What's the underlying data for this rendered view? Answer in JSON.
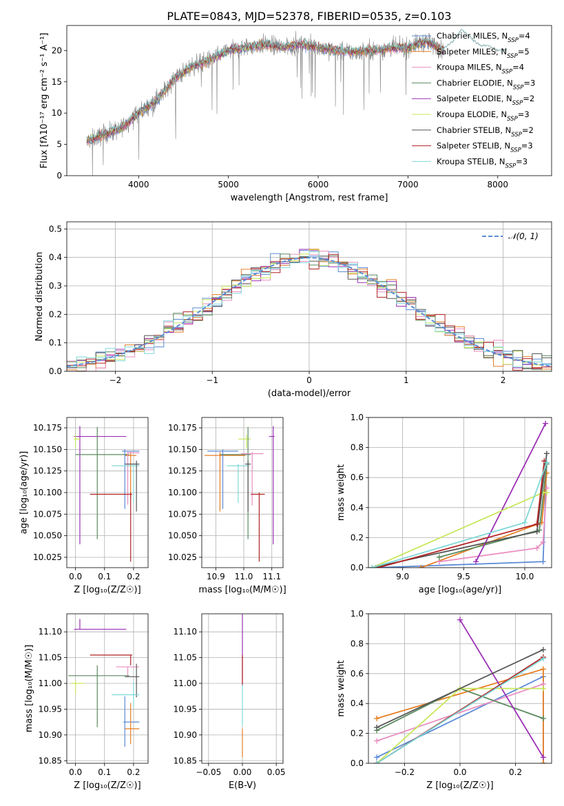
{
  "title": "PLATE=0843, MJD=52378, FIBERID=0535, z=0.103",
  "series_styles": [
    {
      "key": "chab_miles",
      "color": "#5b8bd6"
    },
    {
      "key": "salp_miles",
      "color": "#e67e22"
    },
    {
      "key": "krou_miles",
      "color": "#e98ec1"
    },
    {
      "key": "chab_elod",
      "color": "#5a8a5f"
    },
    {
      "key": "salp_elod",
      "color": "#9b30b5"
    },
    {
      "key": "krou_elod",
      "color": "#c7e85a"
    },
    {
      "key": "chab_stel",
      "color": "#555555"
    },
    {
      "key": "salp_stel",
      "color": "#b22222"
    },
    {
      "key": "krou_stel",
      "color": "#7fd8d8"
    }
  ],
  "chart_data": [
    {
      "id": "spectrum",
      "type": "line",
      "xlabel": "wavelength [Angstrom, rest frame]",
      "ylabel": "Flux [fλ10⁻¹⁷ erg cm⁻² s⁻¹ A⁻¹]",
      "xlim": [
        3200,
        8600
      ],
      "ylim": [
        0,
        24
      ],
      "xticks": [
        4000,
        5000,
        6000,
        7000,
        8000
      ],
      "yticks": [
        0,
        5,
        10,
        15,
        20
      ],
      "data_color": "#808080",
      "data_envelope": {
        "x": [
          3420,
          3600,
          3800,
          4000,
          4200,
          4400,
          4600,
          4800,
          5000,
          5200,
          5400,
          5600,
          5800,
          6000,
          6200,
          6400,
          6600,
          6800,
          7000,
          7200,
          7400
        ],
        "y": [
          5.5,
          6.5,
          7.5,
          10.0,
          12.0,
          15.5,
          17.5,
          18.5,
          20.0,
          20.5,
          21.0,
          20.5,
          21.0,
          20.5,
          20.0,
          19.8,
          20.0,
          20.3,
          20.5,
          21.5,
          20.0
        ]
      },
      "model_extension": {
        "x": [
          7400,
          7500,
          7600,
          7700,
          7800,
          7900,
          8000,
          8100
        ],
        "y": [
          20.3,
          21.5,
          23.5,
          22.0,
          20.8,
          20.8,
          20.0,
          20.2
        ]
      },
      "legend": [
        {
          "series": "chab_miles",
          "label": "Chabrier MILES, N",
          "sub": "SSP",
          "suffix": "=4"
        },
        {
          "series": "salp_miles",
          "label": "Salpeter MILES, N",
          "sub": "SSP",
          "suffix": "=5"
        },
        {
          "series": "krou_miles",
          "label": "Kroupa MILES, N",
          "sub": "SSP",
          "suffix": "=4"
        },
        {
          "series": "chab_elod",
          "label": "Chabrier ELODIE, N",
          "sub": "SSP",
          "suffix": "=3"
        },
        {
          "series": "salp_elod",
          "label": "Salpeter ELODIE, N",
          "sub": "SSP",
          "suffix": "=2"
        },
        {
          "series": "krou_elod",
          "label": "Kroupa ELODIE, N",
          "sub": "SSP",
          "suffix": "=3"
        },
        {
          "series": "chab_stel",
          "label": "Chabrier STELIB, N",
          "sub": "SSP",
          "suffix": "=2"
        },
        {
          "series": "salp_stel",
          "label": "Salpeter STELIB, N",
          "sub": "SSP",
          "suffix": "=3"
        },
        {
          "series": "krou_stel",
          "label": "Kroupa STELIB, N",
          "sub": "SSP",
          "suffix": "=3"
        }
      ],
      "legend_position": "upper-right",
      "grid": false
    },
    {
      "id": "residuals",
      "type": "step",
      "xlabel": "(data-model)/error",
      "ylabel": "Normed distribution",
      "xlim": [
        -2.5,
        2.5
      ],
      "ylim": [
        0,
        0.525
      ],
      "xticks": [
        -2,
        -1,
        0,
        1,
        2
      ],
      "yticks": [
        0.0,
        0.1,
        0.2,
        0.3,
        0.4,
        0.5
      ],
      "bins": 50,
      "gaussian": {
        "mu": 0,
        "sigma": 1,
        "label": "𝒩(0, 1)",
        "color": "#5b8bd6"
      },
      "legend_position": "upper-right",
      "grid": true
    },
    {
      "id": "age_vs_Z",
      "type": "errorbar",
      "xlabel": "Z [log₁₀(Z/Z☉)]",
      "ylabel": "age  [log₁₀(age/yr)]",
      "xlim": [
        -0.03,
        0.25
      ],
      "ylim": [
        10.013,
        10.187
      ],
      "xticks": [
        0.0,
        0.1,
        0.2
      ],
      "yticks": [
        10.025,
        10.05,
        10.075,
        10.1,
        10.125,
        10.15,
        10.175
      ],
      "grid": true,
      "points": [
        {
          "series": "salp_elod",
          "x": 0.015,
          "xerr": [
            0.02,
            0.16
          ],
          "y": 10.165,
          "yerr": [
            0.125,
            0.012
          ]
        },
        {
          "series": "krou_elod",
          "x": 0.0,
          "xerr": [
            0.005,
            0.015
          ],
          "y": 10.162,
          "yerr": [
            0.01,
            0.005
          ]
        },
        {
          "series": "chab_elod",
          "x": 0.075,
          "xerr": [
            0.075,
            0.11
          ],
          "y": 10.144,
          "yerr": [
            0.098,
            0.032
          ]
        },
        {
          "series": "salp_miles",
          "x": 0.19,
          "xerr": [
            0.02,
            0.02
          ],
          "y": 10.143,
          "yerr": [
            0.05,
            0.004
          ]
        },
        {
          "series": "chab_miles",
          "x": 0.17,
          "xerr": [
            0.01,
            0.05
          ],
          "y": 10.148,
          "yerr": [
            0.067,
            0.002
          ]
        },
        {
          "series": "krou_miles",
          "x": 0.18,
          "xerr": [
            0.0,
            0.04
          ],
          "y": 10.146,
          "yerr": [
            0.06,
            0.002
          ]
        },
        {
          "series": "krou_stel",
          "x": 0.2,
          "xerr": [
            0.075,
            0.02
          ],
          "y": 10.131,
          "yerr": [
            0.043,
            0.002
          ]
        },
        {
          "series": "chab_stel",
          "x": 0.21,
          "xerr": [
            0.04,
            0.01
          ],
          "y": 10.133,
          "yerr": [
            0.055,
            0.004
          ]
        },
        {
          "series": "salp_stel",
          "x": 0.19,
          "xerr": [
            0.14,
            0.005
          ],
          "y": 10.098,
          "yerr": [
            0.078,
            0.002
          ]
        }
      ]
    },
    {
      "id": "age_vs_mass",
      "type": "errorbar",
      "xlabel": "mass [log₁₀(M/M☉)]",
      "ylabel": "",
      "xlim": [
        10.85,
        11.14
      ],
      "ylim": [
        10.013,
        10.187
      ],
      "xticks": [
        10.9,
        11.0,
        11.1
      ],
      "yticks": [
        10.025,
        10.05,
        10.075,
        10.1,
        10.125,
        10.15,
        10.175
      ],
      "grid": true,
      "points": [
        {
          "series": "salp_elod",
          "x": 11.105,
          "xerr": [
            0.015,
            0.005
          ],
          "y": 10.165,
          "yerr": [
            0.125,
            0.012
          ]
        },
        {
          "series": "krou_elod",
          "x": 11.01,
          "xerr": [
            0.03,
            0.015
          ],
          "y": 10.162,
          "yerr": [
            0.01,
            0.005
          ]
        },
        {
          "series": "chab_elod",
          "x": 11.015,
          "xerr": [
            0.1,
            0.01
          ],
          "y": 10.144,
          "yerr": [
            0.098,
            0.032
          ]
        },
        {
          "series": "salp_miles",
          "x": 10.915,
          "xerr": [
            0.055,
            0.09
          ],
          "y": 10.143,
          "yerr": [
            0.065,
            0.004
          ]
        },
        {
          "series": "chab_miles",
          "x": 10.925,
          "xerr": [
            0.055,
            0.055
          ],
          "y": 10.148,
          "yerr": [
            0.067,
            0.002
          ]
        },
        {
          "series": "krou_miles",
          "x": 11.03,
          "xerr": [
            0.04,
            0.04
          ],
          "y": 10.145,
          "yerr": [
            0.06,
            0.002
          ]
        },
        {
          "series": "krou_stel",
          "x": 10.98,
          "xerr": [
            0.04,
            0.04
          ],
          "y": 10.131,
          "yerr": [
            0.043,
            0.002
          ]
        },
        {
          "series": "chab_stel",
          "x": 11.015,
          "xerr": [
            0.01,
            0.01
          ],
          "y": 10.133,
          "yerr": [
            0.055,
            0.004
          ]
        },
        {
          "series": "salp_stel",
          "x": 11.055,
          "xerr": [
            0.03,
            0.02
          ],
          "y": 10.098,
          "yerr": [
            0.078,
            0.002
          ]
        }
      ]
    },
    {
      "id": "weight_vs_age",
      "type": "line",
      "xlabel": "age  [log₁₀(age/yr)]",
      "ylabel": "mass weight",
      "xlim": [
        8.72,
        10.22
      ],
      "ylim": [
        0,
        1.0
      ],
      "xticks": [
        9.0,
        9.5,
        10.0
      ],
      "yticks": [
        0.0,
        0.2,
        0.4,
        0.6,
        0.8,
        1.0
      ],
      "grid": true,
      "series": [
        {
          "series": "chab_miles",
          "x": [
            8.78,
            10.15,
            10.18
          ],
          "y": [
            0.0,
            0.04,
            0.7
          ]
        },
        {
          "series": "salp_miles",
          "x": [
            9.15,
            10.14,
            10.18
          ],
          "y": [
            0.0,
            0.3,
            0.63
          ]
        },
        {
          "series": "krou_miles",
          "x": [
            9.3,
            10.1,
            10.15,
            10.18
          ],
          "y": [
            0.04,
            0.13,
            0.17,
            0.53
          ]
        },
        {
          "series": "chab_elod",
          "x": [
            9.3,
            10.12,
            10.18
          ],
          "y": [
            0.07,
            0.25,
            0.69
          ]
        },
        {
          "series": "salp_elod",
          "x": [
            9.6,
            10.17
          ],
          "y": [
            0.04,
            0.96
          ]
        },
        {
          "series": "krou_elod",
          "x": [
            8.75,
            10.15,
            10.18
          ],
          "y": [
            0.0,
            0.5,
            0.5
          ]
        },
        {
          "series": "chab_stel",
          "x": [
            8.75,
            10.1,
            10.18
          ],
          "y": [
            0.0,
            0.24,
            0.76
          ]
        },
        {
          "series": "salp_stel",
          "x": [
            8.8,
            10.1,
            10.16
          ],
          "y": [
            0.0,
            0.29,
            0.71
          ]
        },
        {
          "series": "krou_stel",
          "x": [
            8.75,
            10.0,
            10.18
          ],
          "y": [
            0.0,
            0.3,
            0.7
          ]
        }
      ]
    },
    {
      "id": "mass_vs_Z",
      "type": "errorbar",
      "xlabel": "Z [log₁₀(Z/Z☉)]",
      "ylabel": "mass [log₁₀(M/M☉)]",
      "xlim": [
        -0.03,
        0.25
      ],
      "ylim": [
        10.845,
        11.135
      ],
      "xticks": [
        0.0,
        0.1,
        0.2
      ],
      "yticks": [
        10.85,
        10.9,
        10.95,
        11.0,
        11.05,
        11.1
      ],
      "grid": true,
      "points": [
        {
          "series": "salp_elod",
          "x": 0.015,
          "xerr": [
            0.02,
            0.16
          ],
          "y": 11.105,
          "yerr": [
            0.0,
            0.02
          ]
        },
        {
          "series": "salp_stel",
          "x": 0.19,
          "xerr": [
            0.14,
            0.005
          ],
          "y": 11.055,
          "yerr": [
            0.02,
            0.0
          ]
        },
        {
          "series": "krou_miles",
          "x": 0.18,
          "xerr": [
            0.04,
            0.04
          ],
          "y": 11.032,
          "yerr": [
            0.02,
            0.0
          ]
        },
        {
          "series": "krou_elod",
          "x": 0.0,
          "xerr": [
            0.015,
            0.03
          ],
          "y": 11.0,
          "yerr": [
            0.02,
            0.005
          ]
        },
        {
          "series": "chab_elod",
          "x": 0.075,
          "xerr": [
            0.1,
            0.11
          ],
          "y": 11.015,
          "yerr": [
            0.1,
            0.02
          ]
        },
        {
          "series": "chab_stel",
          "x": 0.21,
          "xerr": [
            0.04,
            0.01
          ],
          "y": 11.013,
          "yerr": [
            0.04,
            0.025
          ]
        },
        {
          "series": "krou_stel",
          "x": 0.2,
          "xerr": [
            0.075,
            0.02
          ],
          "y": 10.978,
          "yerr": [
            0.025,
            0.025
          ]
        },
        {
          "series": "chab_miles",
          "x": 0.17,
          "xerr": [
            0.005,
            0.05
          ],
          "y": 10.925,
          "yerr": [
            0.048,
            0.05
          ]
        },
        {
          "series": "salp_miles",
          "x": 0.19,
          "xerr": [
            0.02,
            0.03
          ],
          "y": 10.912,
          "yerr": [
            0.03,
            0.05
          ]
        }
      ]
    },
    {
      "id": "mass_vs_ebv",
      "type": "errorbar",
      "xlabel": "E(B-V)",
      "ylabel": "",
      "xlim": [
        -0.06,
        0.06
      ],
      "ylim": [
        10.845,
        11.135
      ],
      "xticks": [
        -0.05,
        0.0,
        0.05
      ],
      "yticks": [
        10.85,
        10.9,
        10.95,
        11.0,
        11.05,
        11.1
      ],
      "grid": true,
      "points": [
        {
          "series": "salp_elod",
          "x": 0.0,
          "xerr": [
            0.0,
            0.0
          ],
          "y": 11.105,
          "yerr": [
            0.11,
            0.03
          ]
        },
        {
          "series": "salp_stel",
          "x": 0.0,
          "xerr": [
            0.0,
            0.0
          ],
          "y": 11.055,
          "yerr": [
            0.06,
            0.0
          ]
        },
        {
          "series": "krou_stel",
          "x": 0.0,
          "xerr": [
            0.0,
            0.0
          ],
          "y": 10.978,
          "yerr": [
            0.06,
            0.02
          ]
        },
        {
          "series": "salp_miles",
          "x": 0.0,
          "xerr": [
            0.0,
            0.0
          ],
          "y": 10.912,
          "yerr": [
            0.055,
            0.0
          ]
        }
      ]
    },
    {
      "id": "weight_vs_Z",
      "type": "line",
      "xlabel": "Z [log₁₀(Z/Z☉)]",
      "ylabel": "mass weight",
      "xlim": [
        -0.33,
        0.33
      ],
      "ylim": [
        0,
        1.0
      ],
      "xticks": [
        -0.2,
        0.0,
        0.2
      ],
      "yticks": [
        0.0,
        0.2,
        0.4,
        0.6,
        0.8,
        1.0
      ],
      "grid": true,
      "series": [
        {
          "series": "chab_miles",
          "x": [
            -0.3,
            0.3,
            0.3
          ],
          "y": [
            0.04,
            0.58,
            0.0
          ]
        },
        {
          "series": "salp_miles",
          "x": [
            -0.3,
            0.3,
            0.3
          ],
          "y": [
            0.3,
            0.63,
            0.0
          ]
        },
        {
          "series": "krou_miles",
          "x": [
            -0.3,
            0.3
          ],
          "y": [
            0.15,
            0.53
          ]
        },
        {
          "series": "chab_elod",
          "x": [
            -0.3,
            0.0,
            0.3
          ],
          "y": [
            0.22,
            0.5,
            0.3
          ]
        },
        {
          "series": "salp_elod",
          "x": [
            0.0,
            0.3
          ],
          "y": [
            0.96,
            0.04
          ]
        },
        {
          "series": "krou_elod",
          "x": [
            -0.3,
            0.0,
            0.3
          ],
          "y": [
            0.0,
            0.5,
            0.5
          ]
        },
        {
          "series": "chab_stel",
          "x": [
            -0.3,
            0.3
          ],
          "y": [
            0.24,
            0.76
          ]
        },
        {
          "series": "salp_stel",
          "x": [
            -0.3,
            0.3
          ],
          "y": [
            0.0,
            0.71
          ]
        },
        {
          "series": "krou_stel",
          "x": [
            -0.3,
            0.3
          ],
          "y": [
            0.0,
            0.7
          ]
        }
      ]
    }
  ]
}
